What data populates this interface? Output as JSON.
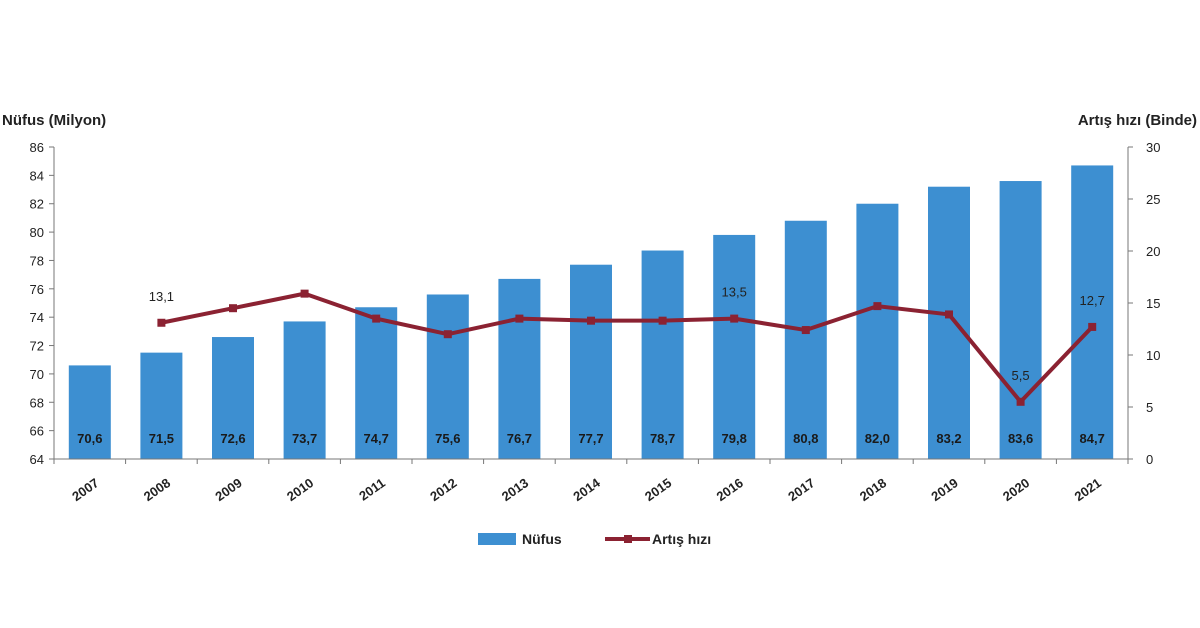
{
  "chart_data": {
    "type": "bar",
    "categories": [
      "2007",
      "2008",
      "2009",
      "2010",
      "2011",
      "2012",
      "2013",
      "2014",
      "2015",
      "2016",
      "2017",
      "2018",
      "2019",
      "2020",
      "2021"
    ],
    "series": [
      {
        "name": "Nüfus",
        "type": "bar",
        "axis": "left",
        "values": [
          70.6,
          71.5,
          72.6,
          73.7,
          74.7,
          75.6,
          76.7,
          77.7,
          78.7,
          79.8,
          80.8,
          82.0,
          83.2,
          83.6,
          84.7
        ],
        "labels": [
          "70,6",
          "71,5",
          "72,6",
          "73,7",
          "74,7",
          "75,6",
          "76,7",
          "77,7",
          "78,7",
          "79,8",
          "80,8",
          "82,0",
          "83,2",
          "83,6",
          "84,7"
        ]
      },
      {
        "name": "Artış hızı",
        "type": "line",
        "axis": "right",
        "values": [
          null,
          13.1,
          14.5,
          15.9,
          13.5,
          12.0,
          13.5,
          13.3,
          13.3,
          13.5,
          12.4,
          14.7,
          13.9,
          5.5,
          12.7
        ]
      }
    ],
    "line_labels": [
      {
        "category": "2008",
        "text": "13,1"
      },
      {
        "category": "2016",
        "text": "13,5"
      },
      {
        "category": "2020",
        "text": "5,5"
      },
      {
        "category": "2021",
        "text": "12,7"
      }
    ],
    "ylabel": "Nüfus (Milyon)",
    "ylabel_right": "Artış hızı (Binde)",
    "ylim": [
      64,
      86
    ],
    "yticks": [
      64,
      66,
      68,
      70,
      72,
      74,
      76,
      78,
      80,
      82,
      84,
      86
    ],
    "ylim_right": [
      0,
      30
    ],
    "yticks_right": [
      0,
      5,
      10,
      15,
      20,
      25,
      30
    ],
    "grid": false,
    "legend": {
      "position": "bottom",
      "entries": [
        "Nüfus",
        "Artış hızı"
      ]
    },
    "colors": {
      "bar": "#3d8fd1",
      "line": "#8b2232"
    }
  }
}
